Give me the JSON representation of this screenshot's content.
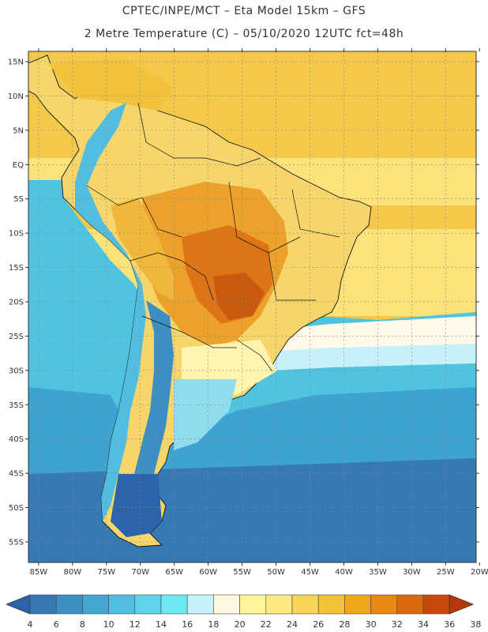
{
  "header": {
    "line1": "CPTEC/INPE/MCT –  Eta Model 15km – GFS",
    "line2": "2 Metre Temperature (C) – 05/10/2020 12UTC fct=48h"
  },
  "map": {
    "lat_labels": [
      "15N",
      "10N",
      "5N",
      "EQ",
      "5S",
      "10S",
      "15S",
      "20S",
      "25S",
      "30S",
      "35S",
      "40S",
      "45S",
      "50S",
      "55S"
    ],
    "lat_values": [
      15,
      10,
      5,
      0,
      -5,
      -10,
      -15,
      -20,
      -25,
      -30,
      -35,
      -40,
      -45,
      -50,
      -55
    ],
    "lon_labels": [
      "85W",
      "80W",
      "75W",
      "70W",
      "65W",
      "60W",
      "55W",
      "50W",
      "45W",
      "40W",
      "35W",
      "30W",
      "25W",
      "20W"
    ],
    "lon_values": [
      -85,
      -80,
      -75,
      -70,
      -65,
      -60,
      -55,
      -50,
      -45,
      -40,
      -35,
      -30,
      -25,
      -20
    ],
    "lat_range": [
      -58,
      16.5
    ],
    "lon_range": [
      -86.5,
      -20.5
    ]
  },
  "legend": {
    "labels": [
      "4",
      "6",
      "8",
      "10",
      "12",
      "14",
      "16",
      "18",
      "20",
      "22",
      "24",
      "26",
      "28",
      "30",
      "32",
      "34",
      "36",
      "38"
    ],
    "colors": [
      "#2d63a8",
      "#3679b5",
      "#3d8fc3",
      "#46a5d2",
      "#52bddf",
      "#5ed3e9",
      "#6ee9f4",
      "#c8f2fb",
      "#fff8e0",
      "#fff499",
      "#fde882",
      "#f8d559",
      "#f2c23d",
      "#f0a818",
      "#e68a14",
      "#d96a0f",
      "#c8480a",
      "#b8380a"
    ]
  }
}
